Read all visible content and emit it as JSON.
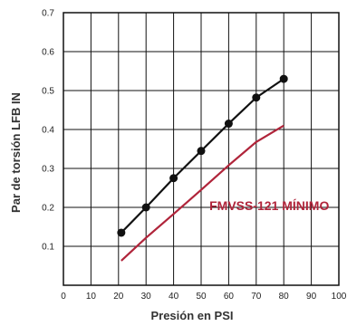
{
  "chart_data": {
    "type": "line",
    "title": "",
    "xlabel": "Presión en PSI",
    "ylabel": "Par de torsión LFB IN",
    "xlim": [
      0,
      100
    ],
    "ylim": [
      0,
      0.7
    ],
    "x_ticks": [
      "0",
      "10",
      "20",
      "30",
      "40",
      "50",
      "60",
      "70",
      "80",
      "90",
      "100"
    ],
    "y_ticks": [
      "0.1",
      "0.2",
      "0.3",
      "0.4",
      "0.5",
      "0.6",
      "0.7"
    ],
    "grid": true,
    "series": [
      {
        "color": "#111111",
        "markers": true,
        "x": [
          21,
          30,
          40,
          50,
          60,
          70,
          80
        ],
        "y": [
          0.135,
          0.2,
          0.275,
          0.345,
          0.415,
          0.482,
          0.53
        ]
      },
      {
        "name": "FMVSS-121 MÍNIMO",
        "color": "#b0243a",
        "markers": false,
        "x": [
          21,
          30,
          40,
          50,
          60,
          70,
          80
        ],
        "y": [
          0.063,
          0.122,
          0.183,
          0.245,
          0.308,
          0.368,
          0.41
        ]
      }
    ],
    "annotations": [
      {
        "text": "FMVSS-121 MÍNIMO",
        "color": "#b0243a",
        "x": 53,
        "y": 0.205
      }
    ]
  }
}
